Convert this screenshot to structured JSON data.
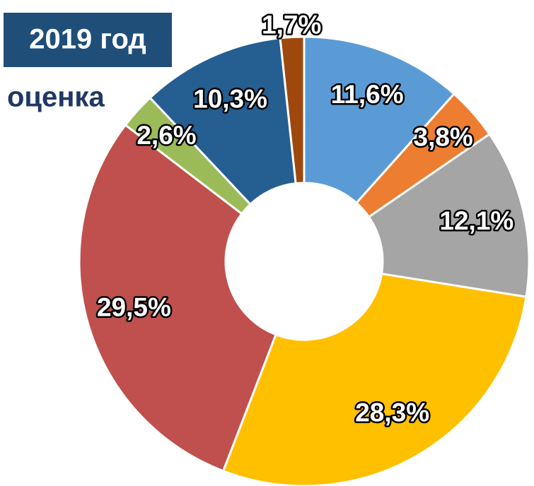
{
  "chart_data": {
    "type": "pie",
    "title": "2019 год",
    "subtitle": "оценка",
    "categories": [
      null,
      null,
      null,
      null,
      null,
      null,
      null,
      null
    ],
    "values": [
      11.6,
      3.8,
      12.1,
      28.3,
      29.5,
      2.6,
      10.3,
      1.7
    ],
    "value_labels": [
      "11,6%",
      "3,8%",
      "12,1%",
      "28,3%",
      "29,5%",
      "2,6%",
      "10,3%",
      "1,7%"
    ],
    "colors": [
      "#5b9bd5",
      "#ed7d31",
      "#a5a5a5",
      "#ffc000",
      "#c0504d",
      "#9bbb59",
      "#255e91",
      "#9e480e"
    ],
    "donut": true
  }
}
